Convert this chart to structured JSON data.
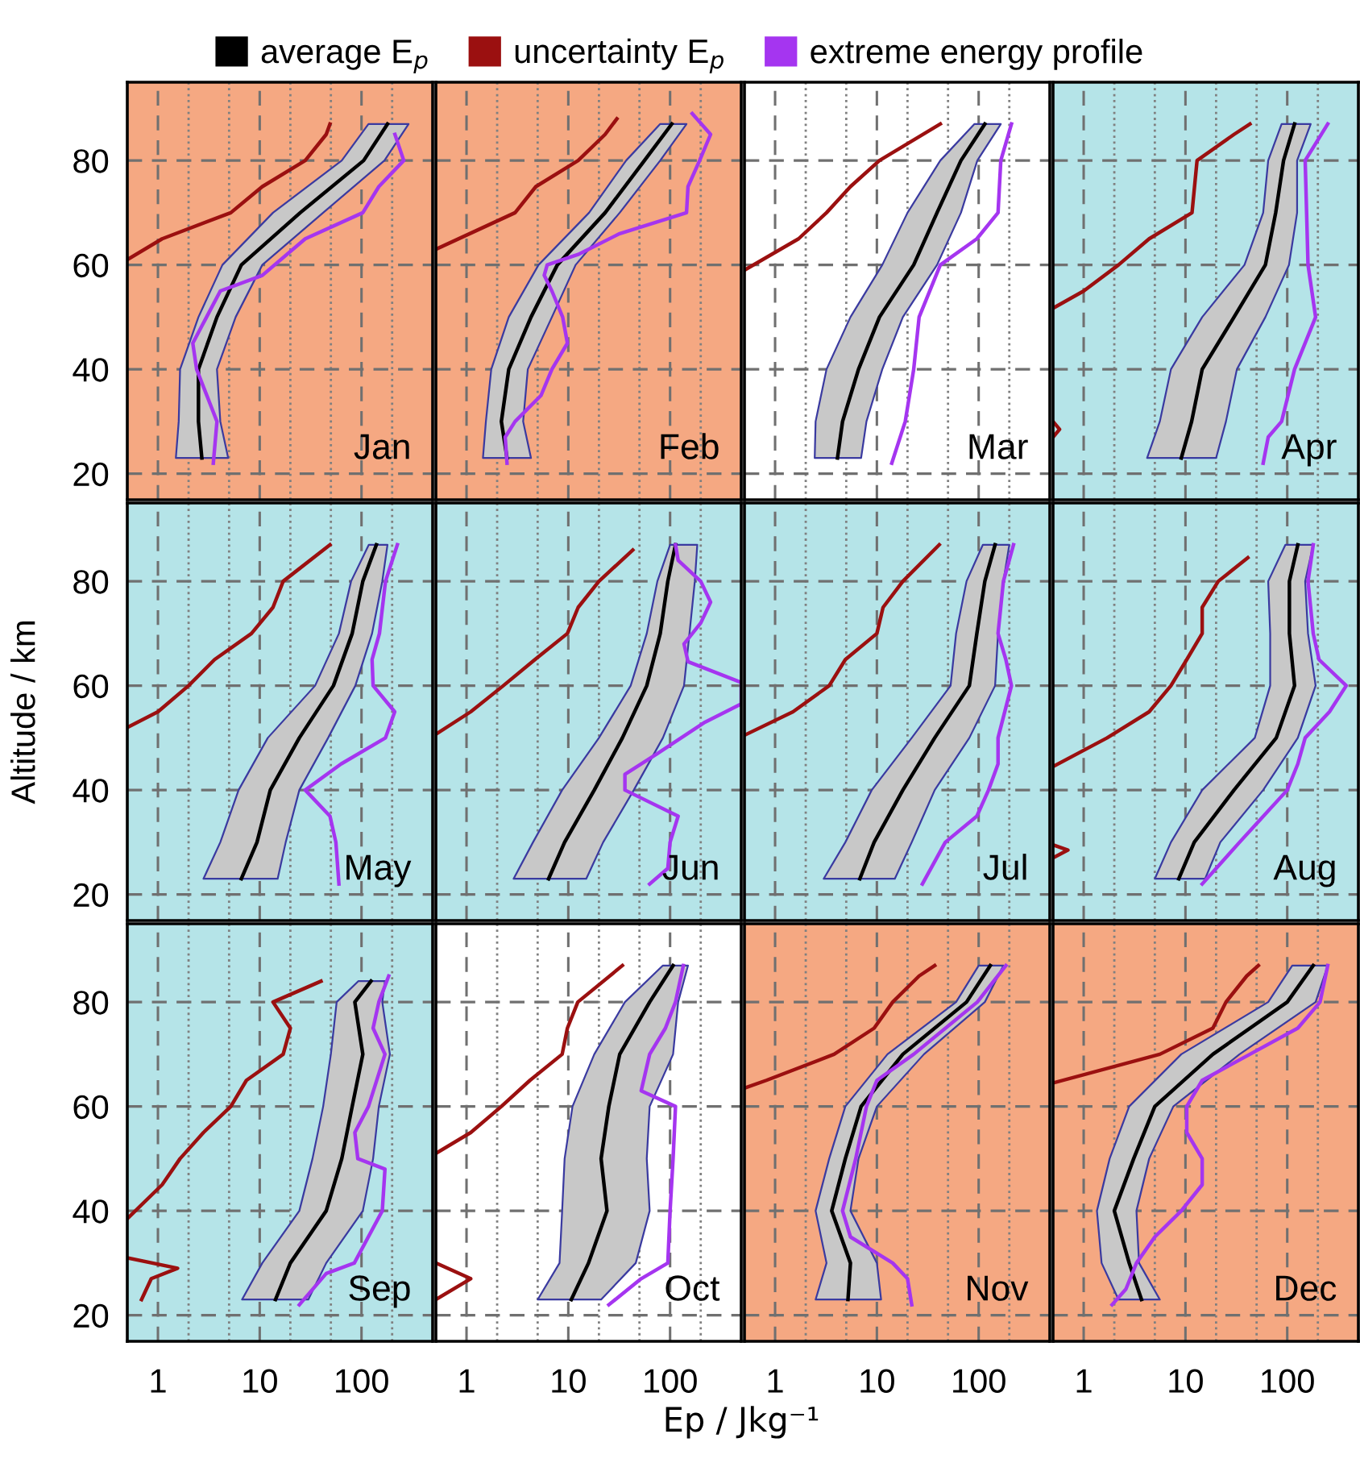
{
  "chart_data": [
    {
      "type": "line",
      "orientation": "horizontal",
      "tick_labels": "y",
      "xlim": [
        0.5,
        500
      ],
      "ylim": [
        15,
        95
      ],
      "xticks": [
        1,
        10,
        100
      ],
      "yticks": [
        20,
        40,
        60,
        80
      ],
      "log": "x",
      "grid": true,
      "legend": "top",
      "annotations": [
        "Jan"
      ],
      "bands": [
        {
          "axis": "y",
          "from": 15,
          "to": 95,
          "color": "#f5a882"
        }
      ],
      "series": [
        {
          "name": "average E$_{p}$",
          "color": "#000000",
          "values": [
            2.7,
            2.5,
            2.5,
            3.8,
            6.6,
            25,
            105,
            180
          ],
          "x": [
            23,
            30,
            40,
            50,
            60,
            70,
            80,
            87
          ],
          "lower": [
            1.5,
            1.6,
            1.65,
            2.5,
            4.3,
            13.5,
            64,
            117
          ],
          "upper": [
            4.9,
            4.1,
            3.8,
            5.8,
            10.6,
            42,
            168,
            290
          ]
        },
        {
          "name": "uncertainty E$_{p}$",
          "color": "#9b1010",
          "values": [
            0.5,
            1.1,
            5.2,
            10.6,
            28,
            45,
            49
          ],
          "x": [
            61,
            65,
            70,
            75,
            80,
            85,
            87
          ]
        },
        {
          "name": "extreme energy profile",
          "color": "#a535f0",
          "values": [
            3.5,
            3.8,
            2.4,
            2.2,
            4.1,
            10.6,
            28,
            103,
            148,
            260,
            213
          ],
          "x": [
            22,
            30,
            40,
            45,
            55,
            58,
            65,
            70,
            75,
            80,
            85
          ]
        }
      ]
    },
    {
      "type": "line",
      "orientation": "horizontal",
      "tick_labels": false,
      "xlim": [
        0.5,
        500
      ],
      "ylim": [
        15,
        95
      ],
      "xticks": [
        1,
        10,
        100
      ],
      "yticks": [
        20,
        40,
        60,
        80
      ],
      "log": "x",
      "grid": true,
      "annotations": [
        "Feb"
      ],
      "bands": [
        {
          "axis": "y",
          "from": 15,
          "to": 95,
          "color": "#f5a882"
        }
      ],
      "series": [
        {
          "color": "#000000",
          "values": [
            2.5,
            2.2,
            2.6,
            4.3,
            7.8,
            23,
            56,
            104
          ],
          "x": [
            23,
            30,
            40,
            50,
            60,
            70,
            80,
            87
          ],
          "lower": [
            1.45,
            1.55,
            1.75,
            2.6,
            5.1,
            16,
            37,
            80
          ],
          "upper": [
            4.3,
            3.6,
            4.0,
            6.9,
            11.8,
            32,
            80,
            145
          ]
        },
        {
          "color": "#9b1010",
          "values": [
            0.5,
            3.0,
            4.8,
            12.5,
            23,
            30
          ],
          "x": [
            63,
            70,
            75,
            80,
            85,
            88
          ]
        },
        {
          "color": "#a535f0",
          "values": [
            2.5,
            2.4,
            3.0,
            5.4,
            6.9,
            9.8,
            8.8,
            6.9,
            5.8,
            6.2,
            12.5,
            32,
            145,
            150,
            195,
            250,
            165
          ],
          "x": [
            22,
            27,
            30,
            35,
            40,
            45,
            50,
            55,
            58,
            60,
            62,
            66,
            70,
            75,
            80,
            85,
            89
          ]
        }
      ]
    },
    {
      "type": "line",
      "orientation": "horizontal",
      "tick_labels": false,
      "xlim": [
        0.5,
        500
      ],
      "ylim": [
        15,
        95
      ],
      "xticks": [
        1,
        10,
        100
      ],
      "yticks": [
        20,
        40,
        60,
        80
      ],
      "log": "x",
      "grid": true,
      "annotations": [
        "Mar"
      ],
      "series": [
        {
          "color": "#000000",
          "values": [
            4.1,
            4.6,
            6.6,
            10.6,
            23,
            39,
            67,
            115
          ],
          "x": [
            23,
            30,
            40,
            50,
            60,
            70,
            80,
            87
          ],
          "lower": [
            2.45,
            2.5,
            3.2,
            5.5,
            11.3,
            20,
            42,
            91
          ],
          "upper": [
            7.0,
            7.9,
            11.3,
            18,
            39,
            67,
            97,
            165
          ]
        },
        {
          "color": "#9b1010",
          "values": [
            0.5,
            1.7,
            3.2,
            5.5,
            10.6,
            42
          ],
          "x": [
            59,
            65,
            70,
            75,
            80,
            87
          ]
        },
        {
          "color": "#a535f0",
          "values": [
            14,
            19,
            23,
            26,
            42,
            96,
            155,
            165,
            210
          ],
          "x": [
            22,
            30,
            40,
            50,
            60,
            65,
            70,
            80,
            87
          ]
        }
      ]
    },
    {
      "type": "line",
      "orientation": "horizontal",
      "tick_labels": false,
      "xlim": [
        0.5,
        500
      ],
      "ylim": [
        15,
        95
      ],
      "xticks": [
        1,
        10,
        100
      ],
      "yticks": [
        20,
        40,
        60,
        80
      ],
      "log": "x",
      "grid": true,
      "annotations": [
        "Apr"
      ],
      "bands": [
        {
          "axis": "y",
          "from": 15,
          "to": 95,
          "color": "#b5e4e8"
        }
      ],
      "series": [
        {
          "color": "#000000",
          "values": [
            9.1,
            11.5,
            14.6,
            30,
            61,
            77,
            92,
            118
          ],
          "x": [
            23,
            30,
            40,
            50,
            60,
            70,
            80,
            87
          ],
          "lower": [
            4.2,
            5.6,
            7.2,
            14.6,
            38,
            58,
            65,
            88
          ],
          "upper": [
            20,
            25,
            32,
            61,
            104,
            125,
            125,
            170
          ]
        },
        {
          "color": "#9b1010",
          "values": [
            0.5,
            0.58,
            0.5,
            null,
            0.5,
            1.0,
            2.2,
            4.4,
            11.6,
            13,
            30,
            43
          ],
          "x": [
            27,
            28.5,
            30,
            null,
            51.7,
            55,
            60,
            65,
            70,
            80,
            85,
            87
          ]
        },
        {
          "color": "#a535f0",
          "values": [
            58,
            65,
            88,
            118,
            190,
            160,
            155,
            150,
            250
          ],
          "x": [
            22,
            27,
            30,
            40,
            50,
            60,
            70,
            80,
            87
          ]
        }
      ]
    },
    {
      "type": "line",
      "orientation": "horizontal",
      "tick_labels": "y",
      "xlim": [
        0.5,
        500
      ],
      "ylim": [
        15,
        95
      ],
      "xticks": [
        1,
        10,
        100
      ],
      "yticks": [
        20,
        40,
        60,
        80
      ],
      "log": "x",
      "grid": true,
      "ylabel": "Altitude / km",
      "annotations": [
        "May"
      ],
      "bands": [
        {
          "axis": "y",
          "from": 15,
          "to": 95,
          "color": "#b5e4e8"
        }
      ],
      "series": [
        {
          "color": "#000000",
          "values": [
            6.6,
            9.4,
            12.7,
            24.5,
            53,
            81,
            103,
            140
          ],
          "x": [
            23,
            30,
            40,
            50,
            60,
            70,
            80,
            87
          ],
          "lower": [
            2.8,
            4.1,
            6.2,
            12,
            35,
            60,
            79,
            118
          ],
          "upper": [
            15,
            18,
            24.5,
            47,
            87,
            127,
            160,
            180
          ]
        },
        {
          "color": "#9b1010",
          "values": [
            0.5,
            1.0,
            2.0,
            3.6,
            8.3,
            13.5,
            17,
            49
          ],
          "x": [
            52,
            55,
            60,
            65,
            70,
            75,
            80,
            87
          ]
        },
        {
          "color": "#a535f0",
          "values": [
            60,
            56,
            49,
            28,
            63,
            172,
            212,
            130,
            127,
            150,
            172,
            225
          ],
          "x": [
            22,
            30,
            35,
            40,
            45,
            50,
            55,
            60,
            65,
            70,
            80,
            87
          ]
        }
      ]
    },
    {
      "type": "line",
      "orientation": "horizontal",
      "tick_labels": false,
      "xlim": [
        0.5,
        500
      ],
      "ylim": [
        15,
        95
      ],
      "xticks": [
        1,
        10,
        100
      ],
      "yticks": [
        20,
        40,
        60,
        80
      ],
      "log": "x",
      "grid": true,
      "annotations": [
        "Jun"
      ],
      "bands": [
        {
          "axis": "y",
          "from": 15,
          "to": 95,
          "color": "#b5e4e8"
        }
      ],
      "series": [
        {
          "color": "#000000",
          "values": [
            6.4,
            9.2,
            18,
            34,
            59,
            80,
            95,
            113
          ],
          "x": [
            23,
            30,
            40,
            50,
            60,
            70,
            80,
            87
          ],
          "lower": [
            2.9,
            4.5,
            8.7,
            20,
            41,
            59,
            75,
            100
          ],
          "upper": [
            15,
            22,
            44,
            85,
            137,
            155,
            175,
            185
          ]
        },
        {
          "color": "#9b1010",
          "values": [
            0.5,
            1.1,
            2.3,
            4.7,
            9.8,
            12.5,
            20,
            43
          ],
          "x": [
            50.7,
            55,
            60,
            65,
            70,
            75,
            80,
            86
          ]
        },
        {
          "color": "#a535f0",
          "values": [
            63,
            95,
            100,
            120,
            36,
            36,
            75,
            220,
            500,
            500,
            150,
            137,
            200,
            250,
            200,
            120,
            113
          ],
          "x": [
            22,
            25,
            30,
            35,
            40,
            43,
            47,
            53,
            56.5,
            60.6,
            64.6,
            68,
            72,
            76,
            80,
            84,
            87
          ]
        }
      ]
    },
    {
      "type": "line",
      "orientation": "horizontal",
      "tick_labels": false,
      "xlim": [
        0.5,
        500
      ],
      "ylim": [
        15,
        95
      ],
      "xticks": [
        1,
        10,
        100
      ],
      "yticks": [
        20,
        40,
        60,
        80
      ],
      "log": "x",
      "grid": true,
      "annotations": [
        "Jul"
      ],
      "bands": [
        {
          "axis": "y",
          "from": 15,
          "to": 95,
          "color": "#b5e4e8"
        }
      ],
      "series": [
        {
          "color": "#000000",
          "values": [
            6.8,
            9.4,
            18,
            37,
            81,
            96,
            115,
            145
          ],
          "x": [
            23,
            30,
            40,
            50,
            60,
            70,
            80,
            87
          ],
          "lower": [
            3.0,
            4.9,
            8.9,
            22,
            53,
            60,
            76,
            110
          ],
          "upper": [
            15,
            22,
            37,
            81,
            145,
            155,
            175,
            200
          ]
        },
        {
          "color": "#9b1010",
          "values": [
            0.5,
            1.5,
            3.4,
            4.9,
            10,
            11.5,
            18,
            41
          ],
          "x": [
            50.5,
            55,
            60,
            65,
            70,
            75,
            80,
            87
          ]
        },
        {
          "color": "#a535f0",
          "values": [
            28,
            47,
            96,
            125,
            155,
            155,
            210,
            185,
            155,
            175,
            220
          ],
          "x": [
            22,
            30,
            35,
            40,
            45,
            50,
            60,
            65,
            70,
            80,
            87
          ]
        }
      ]
    },
    {
      "type": "line",
      "orientation": "horizontal",
      "tick_labels": false,
      "xlim": [
        0.5,
        500
      ],
      "ylim": [
        15,
        95
      ],
      "xticks": [
        1,
        10,
        100
      ],
      "yticks": [
        20,
        40,
        60,
        80
      ],
      "log": "x",
      "grid": true,
      "annotations": [
        "Aug"
      ],
      "bands": [
        {
          "axis": "y",
          "from": 15,
          "to": 95,
          "color": "#b5e4e8"
        }
      ],
      "series": [
        {
          "color": "#000000",
          "values": [
            8.6,
            12.2,
            30,
            78,
            118,
            105,
            105,
            127
          ],
          "x": [
            23,
            30,
            40,
            50,
            60,
            70,
            80,
            87
          ],
          "lower": [
            5.0,
            7.2,
            14.6,
            48,
            68,
            68,
            65,
            96
          ],
          "upper": [
            15.6,
            22,
            58,
            127,
            190,
            160,
            150,
            180
          ]
        },
        {
          "color": "#9b1010",
          "values": [
            0.5,
            0.7,
            0.5,
            null,
            0.5,
            1.7,
            4.4,
            7.2,
            10.3,
            14.6,
            14.6,
            21,
            41
          ],
          "x": [
            27,
            28.5,
            29.5,
            null,
            44.5,
            50,
            55,
            60,
            65,
            70,
            75,
            80,
            84.5
          ]
        },
        {
          "color": "#a535f0",
          "values": [
            14.6,
            34,
            100,
            127,
            150,
            260,
            380,
            205,
            180,
            160,
            180
          ],
          "x": [
            22,
            30,
            40,
            45,
            50,
            55,
            60,
            65,
            70,
            80,
            87
          ]
        }
      ]
    },
    {
      "type": "line",
      "orientation": "horizontal",
      "xlim": [
        0.5,
        500
      ],
      "ylim": [
        15,
        95
      ],
      "xticks": [
        1,
        10,
        100
      ],
      "yticks": [
        20,
        40,
        60,
        80
      ],
      "log": "x",
      "grid": true,
      "annotations": [
        "Sep"
      ],
      "bands": [
        {
          "axis": "y",
          "from": 15,
          "to": 95,
          "color": "#b5e4e8"
        }
      ],
      "series": [
        {
          "color": "#000000",
          "values": [
            14.3,
            20,
            45,
            64,
            81,
            103,
            86,
            124
          ],
          "x": [
            23,
            30,
            40,
            50,
            60,
            70,
            80,
            84
          ],
          "lower": [
            6.7,
            10.6,
            24.5,
            33,
            42,
            50,
            57,
            93
          ],
          "upper": [
            30,
            45,
            103,
            130,
            148,
            190,
            160,
            170
          ]
        },
        {
          "color": "#9b1010",
          "values": [
            0.69,
            0.86,
            1.56,
            0.5,
            null,
            0.5,
            1.1,
            1.65,
            2.8,
            5.2,
            7.4,
            17,
            20,
            13.5,
            40
          ],
          "x": [
            23,
            27,
            29,
            31,
            null,
            38.5,
            45,
            50,
            55,
            60,
            65,
            70,
            75,
            80,
            84
          ]
        },
        {
          "color": "#a535f0",
          "values": [
            24.5,
            45,
            85,
            160,
            170,
            92,
            86,
            117,
            170,
            130,
            148,
            185
          ],
          "x": [
            22,
            28,
            30,
            40,
            48,
            50,
            55,
            60,
            70,
            75,
            80,
            85
          ]
        }
      ]
    },
    {
      "type": "line",
      "orientation": "horizontal",
      "tick_labels": "x",
      "xlim": [
        0.5,
        500
      ],
      "ylim": [
        15,
        95
      ],
      "xticks": [
        1,
        10,
        100
      ],
      "yticks": [
        20,
        40,
        60,
        80
      ],
      "log": "x",
      "grid": true,
      "xlabel": "Ep / Jkg⁻¹",
      "annotations": [
        "Oct"
      ],
      "series": [
        {
          "color": "#000000",
          "values": [
            10.7,
            15.8,
            24,
            21,
            25,
            32,
            63,
            107
          ],
          "x": [
            23,
            30,
            40,
            50,
            60,
            70,
            80,
            87
          ],
          "lower": [
            5,
            8.2,
            8.7,
            9.2,
            11,
            18,
            36,
            85
          ],
          "upper": [
            21,
            46,
            63,
            59,
            63,
            107,
            120,
            150
          ]
        },
        {
          "color": "#9b1010",
          "values": [
            0.5,
            1.1,
            0.5,
            null,
            0.5,
            1.1,
            2.2,
            4.2,
            8.7,
            9.8,
            12.4,
            34
          ],
          "x": [
            23,
            27,
            30,
            null,
            51,
            55,
            60,
            65,
            70,
            75,
            80,
            87
          ]
        },
        {
          "color": "#a535f0",
          "values": [
            25,
            52,
            95,
            100,
            107,
            113,
            52,
            63,
            90,
            113,
            135
          ],
          "x": [
            22,
            27,
            30,
            40,
            50,
            60,
            63,
            70,
            75,
            80,
            87
          ]
        }
      ]
    },
    {
      "type": "line",
      "orientation": "horizontal",
      "tick_labels": "x",
      "xlim": [
        0.5,
        500
      ],
      "ylim": [
        15,
        95
      ],
      "xticks": [
        1,
        10,
        100
      ],
      "yticks": [
        20,
        40,
        60,
        80
      ],
      "log": "x",
      "grid": true,
      "annotations": [
        "Nov"
      ],
      "bands": [
        {
          "axis": "y",
          "from": 15,
          "to": 95,
          "color": "#f5a882"
        }
      ],
      "series": [
        {
          "color": "#000000",
          "values": [
            5.2,
            5.5,
            3.6,
            4.9,
            7.0,
            18,
            76,
            130
          ],
          "x": [
            23,
            30,
            40,
            50,
            60,
            70,
            80,
            87
          ],
          "lower": [
            2.5,
            3.2,
            2.5,
            3.4,
            4.9,
            12.7,
            60,
            100
          ],
          "upper": [
            11,
            10,
            5.5,
            6.6,
            10,
            29,
            115,
            175
          ]
        },
        {
          "color": "#9b1010",
          "values": [
            0.5,
            0.82,
            3.8,
            9.4,
            14.3,
            26,
            37
          ],
          "x": [
            63.5,
            65,
            70,
            75,
            80,
            85,
            87
          ]
        },
        {
          "color": "#a535f0",
          "values": [
            22,
            20,
            14.3,
            5.5,
            4.6,
            6.2,
            7.9,
            10,
            23,
            97,
            185
          ],
          "x": [
            22,
            27,
            30,
            35,
            40,
            50,
            60,
            65,
            70,
            80,
            87
          ]
        }
      ]
    },
    {
      "type": "line",
      "orientation": "horizontal",
      "tick_labels": "x",
      "xlim": [
        0.5,
        500
      ],
      "ylim": [
        15,
        95
      ],
      "xticks": [
        1,
        10,
        100
      ],
      "yticks": [
        20,
        40,
        60,
        80
      ],
      "log": "x",
      "grid": true,
      "annotations": [
        "Dec"
      ],
      "bands": [
        {
          "axis": "y",
          "from": 15,
          "to": 95,
          "color": "#f5a882"
        }
      ],
      "series": [
        {
          "color": "#000000",
          "values": [
            3.7,
            2.8,
            2.0,
            3.1,
            5.0,
            18.6,
            100,
            180
          ],
          "x": [
            23,
            30,
            40,
            50,
            60,
            70,
            80,
            87
          ],
          "lower": [
            2.2,
            1.5,
            1.35,
            1.8,
            2.8,
            9.1,
            65,
            112
          ],
          "upper": [
            5.6,
            3.5,
            3.3,
            4.4,
            7.6,
            34,
            190,
            250
          ]
        },
        {
          "color": "#9b1010",
          "values": [
            0.5,
            5.6,
            18.6,
            25,
            40,
            52
          ],
          "x": [
            64.5,
            70,
            75,
            80,
            85,
            87
          ]
        },
        {
          "color": "#a535f0",
          "values": [
            1.9,
            2.6,
            3.3,
            5.0,
            9.1,
            14.6,
            14.6,
            10.3,
            10.3,
            14.6,
            43,
            127,
            210,
            250
          ],
          "x": [
            22,
            25,
            30,
            35,
            40,
            45,
            50,
            55,
            60,
            65,
            70,
            75,
            80,
            87
          ]
        }
      ]
    }
  ]
}
